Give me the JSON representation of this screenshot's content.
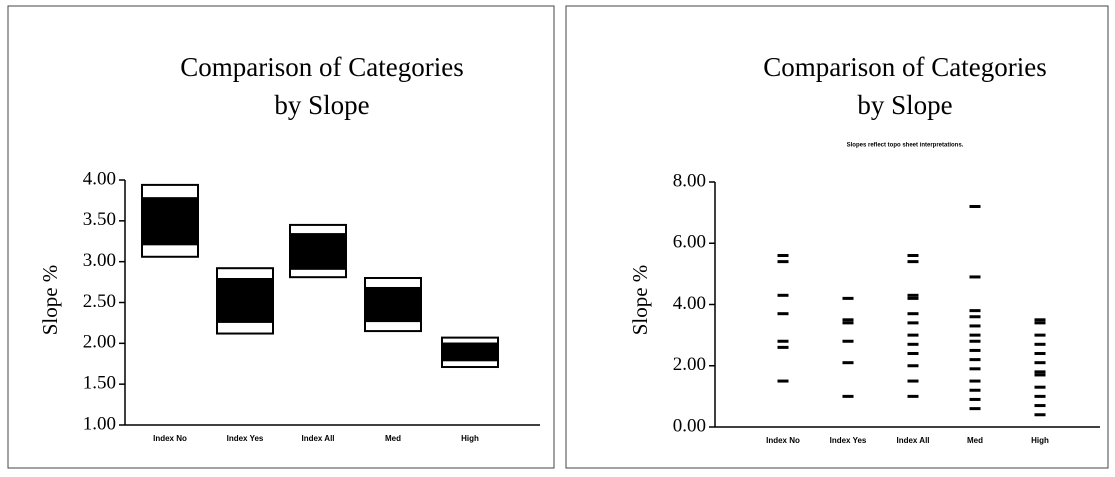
{
  "chart_data": [
    {
      "type": "box",
      "title_lines": [
        "Comparison of Categories",
        "by Slope"
      ],
      "ylabel": "Slope %",
      "categories": [
        "Index No",
        "Index Yes",
        "Index All",
        "Med",
        "High"
      ],
      "outer_high": [
        3.94,
        2.92,
        3.45,
        2.8,
        2.07
      ],
      "outer_low": [
        3.06,
        2.12,
        2.81,
        2.15,
        1.71
      ],
      "inner_high": [
        3.79,
        2.8,
        3.35,
        2.69,
        2.01
      ],
      "inner_low": [
        3.2,
        2.25,
        2.9,
        2.26,
        1.78
      ],
      "color": "#000000",
      "ylim": [
        1,
        4
      ],
      "yticks": [
        {
          "value": 1,
          "label": "1.00"
        },
        {
          "value": 1.5,
          "label": "1.50"
        },
        {
          "value": 2,
          "label": "2.00"
        },
        {
          "value": 2.5,
          "label": "2.50"
        },
        {
          "value": 3,
          "label": "3.00"
        },
        {
          "value": 3.5,
          "label": "3.50"
        },
        {
          "value": 4,
          "label": "4.00"
        }
      ]
    },
    {
      "type": "strip",
      "title_lines": [
        "Comparison of Categories",
        "by Slope"
      ],
      "subtitle": "Slopes reflect topo sheet interpretations.",
      "ylabel": "Slope %",
      "categories": [
        "Index No",
        "Index Yes",
        "Index All",
        "Med",
        "High"
      ],
      "values": [
        [
          5.6,
          5.4,
          4.3,
          3.7,
          2.8,
          2.6,
          1.5
        ],
        [
          4.2,
          3.5,
          3.4,
          2.8,
          2.1,
          1.0
        ],
        [
          5.6,
          5.4,
          4.3,
          4.2,
          3.7,
          3.4,
          3.0,
          2.7,
          2.4,
          2.0,
          1.5,
          1.0
        ],
        [
          7.2,
          4.9,
          3.8,
          3.6,
          3.3,
          3.0,
          2.8,
          2.5,
          2.2,
          1.9,
          1.5,
          1.2,
          0.9,
          0.6
        ],
        [
          3.5,
          3.4,
          3.0,
          2.7,
          2.4,
          2.1,
          1.8,
          1.7,
          1.3,
          1.0,
          0.7,
          0.4
        ]
      ],
      "color": "#000000",
      "ylim": [
        0,
        8
      ],
      "yticks": [
        {
          "value": 0,
          "label": "0.00"
        },
        {
          "value": 2,
          "label": "2.00"
        },
        {
          "value": 4,
          "label": "4.00"
        },
        {
          "value": 6,
          "label": "6.00"
        },
        {
          "value": 8,
          "label": "8.00"
        }
      ]
    }
  ]
}
